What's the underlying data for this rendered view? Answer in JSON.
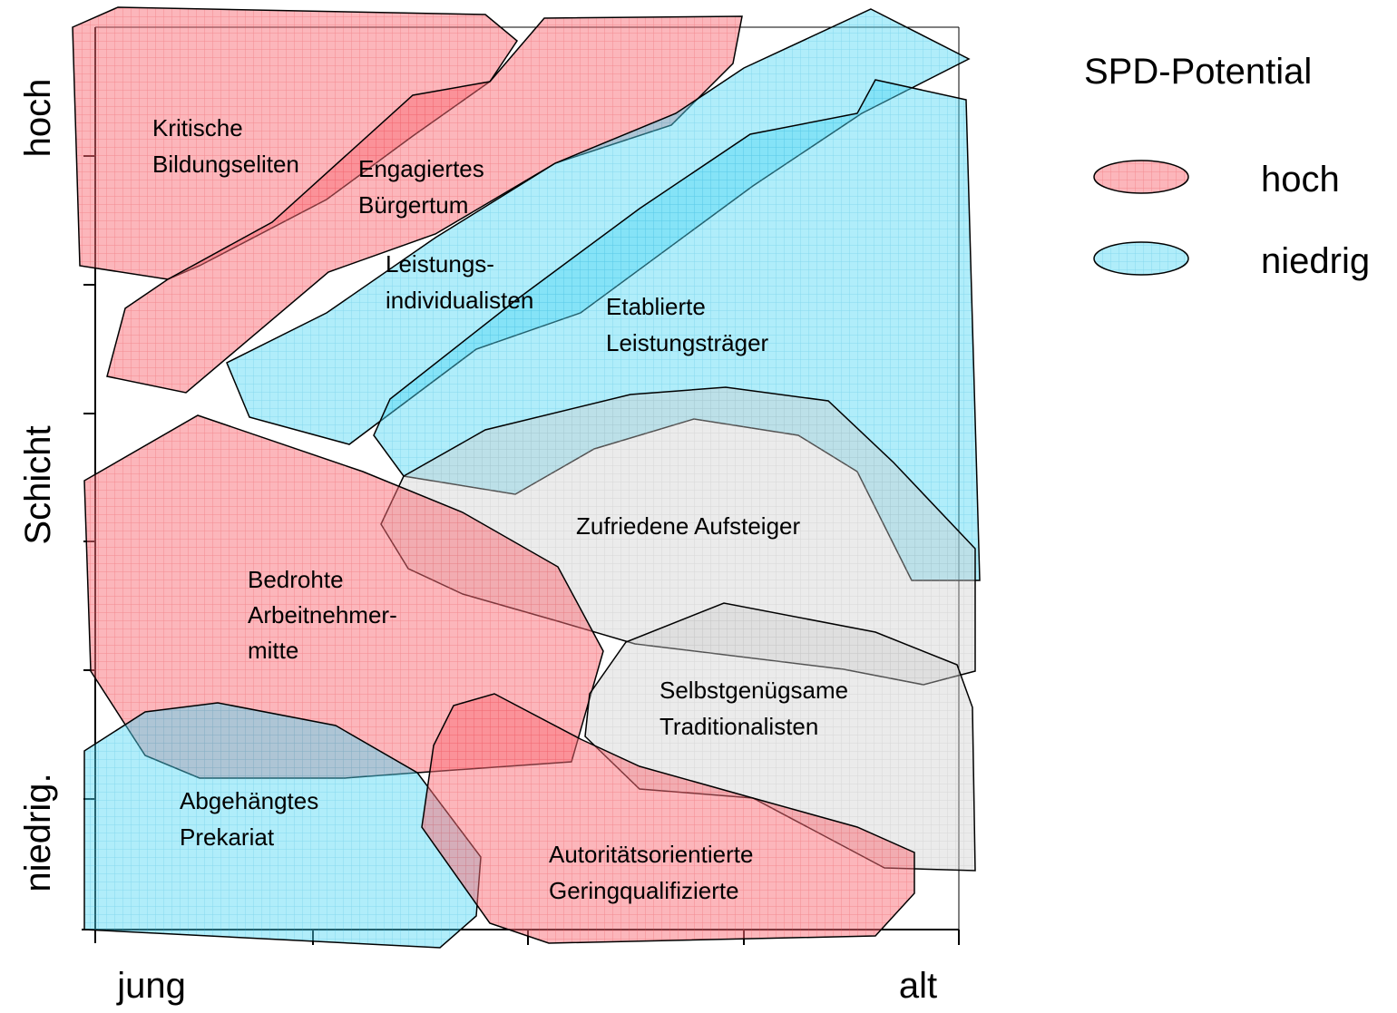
{
  "axes": {
    "y_high": "hoch",
    "y_title": "Schicht",
    "y_low": "niedrig.",
    "x_low": "jung",
    "x_high": "alt"
  },
  "legend": {
    "title": "SPD-Potential",
    "items": [
      {
        "label": "hoch"
      },
      {
        "label": "niedrig"
      }
    ]
  },
  "segments": [
    {
      "label": [
        "Kritische",
        "Bildungseliten"
      ]
    },
    {
      "label": [
        "Engagiertes",
        "Bürgertum"
      ]
    },
    {
      "label": [
        "Leistungs-",
        "individualisten"
      ]
    },
    {
      "label": [
        "Etablierte",
        "Leistungsträger"
      ]
    },
    {
      "label": [
        "Zufriedene Aufsteiger"
      ]
    },
    {
      "label": [
        "Bedrohte",
        "Arbeitnehmer-",
        "mitte"
      ]
    },
    {
      "label": [
        "Selbstgenügsame",
        "Traditionalisten"
      ]
    },
    {
      "label": [
        "Abgehängtes",
        "Prekariat"
      ]
    },
    {
      "label": [
        "Autoritätsorientierte",
        "Geringqualifizierte"
      ]
    }
  ]
}
